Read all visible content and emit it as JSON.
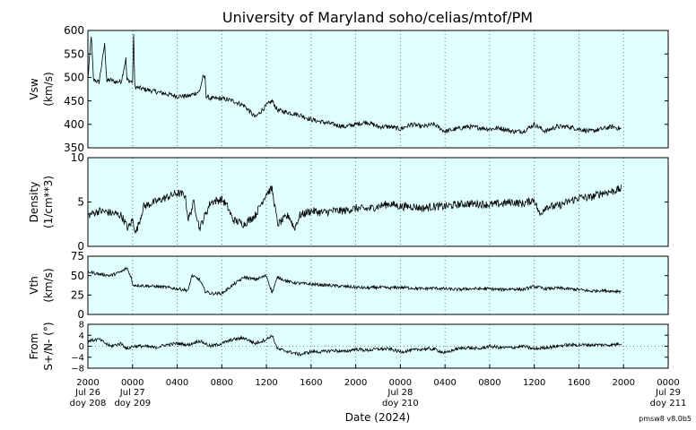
{
  "chart_data": {
    "type": "line",
    "title": "University of Maryland  soho/celias/mtof/PM",
    "xlabel": "Date (2024)",
    "credit": "pmsw8 v8.0b5",
    "x_range_hours": [
      0,
      52
    ],
    "x_ticks": [
      {
        "t": 0,
        "label": "2000",
        "sub1": "Jul 26",
        "sub2": "doy 208"
      },
      {
        "t": 4,
        "label": "0000",
        "sub1": "Jul 27",
        "sub2": "doy 209"
      },
      {
        "t": 8,
        "label": "0400",
        "sub1": "",
        "sub2": ""
      },
      {
        "t": 12,
        "label": "0800",
        "sub1": "",
        "sub2": ""
      },
      {
        "t": 16,
        "label": "1200",
        "sub1": "",
        "sub2": ""
      },
      {
        "t": 20,
        "label": "1600",
        "sub1": "",
        "sub2": ""
      },
      {
        "t": 24,
        "label": "2000",
        "sub1": "",
        "sub2": ""
      },
      {
        "t": 28,
        "label": "0000",
        "sub1": "Jul 28",
        "sub2": "doy 210"
      },
      {
        "t": 32,
        "label": "0400",
        "sub1": "",
        "sub2": ""
      },
      {
        "t": 36,
        "label": "0800",
        "sub1": "",
        "sub2": ""
      },
      {
        "t": 40,
        "label": "1200",
        "sub1": "",
        "sub2": ""
      },
      {
        "t": 44,
        "label": "1600",
        "sub1": "",
        "sub2": ""
      },
      {
        "t": 48,
        "label": "2000",
        "sub1": "",
        "sub2": ""
      },
      {
        "t": 52,
        "label": "0000",
        "sub1": "Jul 29",
        "sub2": "doy 211"
      }
    ],
    "panels": [
      {
        "ylabel1": "Vsw",
        "ylabel2": "(km/s)",
        "ylim": [
          350,
          600
        ],
        "yticks": [
          350,
          400,
          450,
          500,
          550,
          600
        ],
        "noise": 10,
        "zero_line": false,
        "points": [
          [
            0,
            495
          ],
          [
            0.3,
            590
          ],
          [
            0.5,
            495
          ],
          [
            1,
            490
          ],
          [
            1.5,
            570
          ],
          [
            1.7,
            492
          ],
          [
            2,
            495
          ],
          [
            2.5,
            490
          ],
          [
            3,
            492
          ],
          [
            3.4,
            540
          ],
          [
            3.5,
            495
          ],
          [
            4,
            490
          ],
          [
            4.1,
            595
          ],
          [
            4.2,
            480
          ],
          [
            5,
            475
          ],
          [
            6,
            470
          ],
          [
            7,
            465
          ],
          [
            8,
            460
          ],
          [
            9,
            460
          ],
          [
            10,
            470
          ],
          [
            10.3,
            500
          ],
          [
            10.5,
            500
          ],
          [
            10.6,
            460
          ],
          [
            11,
            455
          ],
          [
            12,
            455
          ],
          [
            13,
            450
          ],
          [
            14,
            440
          ],
          [
            15,
            415
          ],
          [
            16,
            440
          ],
          [
            16.5,
            450
          ],
          [
            17,
            430
          ],
          [
            18,
            425
          ],
          [
            19,
            420
          ],
          [
            20,
            410
          ],
          [
            21,
            405
          ],
          [
            22,
            400
          ],
          [
            23,
            395
          ],
          [
            24,
            400
          ],
          [
            25,
            405
          ],
          [
            26,
            395
          ],
          [
            27,
            395
          ],
          [
            28,
            390
          ],
          [
            29,
            400
          ],
          [
            30,
            395
          ],
          [
            31,
            400
          ],
          [
            32,
            385
          ],
          [
            33,
            390
          ],
          [
            34,
            395
          ],
          [
            35,
            393
          ],
          [
            36,
            390
          ],
          [
            37,
            392
          ],
          [
            38,
            385
          ],
          [
            39,
            385
          ],
          [
            40,
            400
          ],
          [
            41,
            385
          ],
          [
            42,
            395
          ],
          [
            43,
            395
          ],
          [
            44,
            390
          ],
          [
            45,
            385
          ],
          [
            46,
            390
          ],
          [
            47,
            395
          ],
          [
            47.8,
            390
          ]
        ]
      },
      {
        "ylabel1": "Density",
        "ylabel2": "(1/cm**3)",
        "ylim": [
          0,
          10
        ],
        "yticks": [
          0,
          5,
          10
        ],
        "noise": 0.9,
        "zero_line": false,
        "points": [
          [
            0,
            3.5
          ],
          [
            1,
            4
          ],
          [
            2,
            3.8
          ],
          [
            3,
            3.5
          ],
          [
            3.6,
            2
          ],
          [
            4,
            3
          ],
          [
            4.3,
            1.5
          ],
          [
            5,
            4.5
          ],
          [
            6,
            5
          ],
          [
            7,
            5.5
          ],
          [
            8,
            6
          ],
          [
            8.7,
            5.8
          ],
          [
            9,
            3
          ],
          [
            9.5,
            5
          ],
          [
            10,
            2
          ],
          [
            11,
            5
          ],
          [
            12,
            5.3
          ],
          [
            12.5,
            4.5
          ],
          [
            13,
            3
          ],
          [
            14,
            2.5
          ],
          [
            15,
            3.5
          ],
          [
            16,
            6
          ],
          [
            16.5,
            6.5
          ],
          [
            17,
            2.5
          ],
          [
            18,
            3.5
          ],
          [
            18.5,
            2
          ],
          [
            19,
            3.5
          ],
          [
            20,
            4
          ],
          [
            21,
            3.8
          ],
          [
            22,
            4
          ],
          [
            23,
            4
          ],
          [
            24,
            4.3
          ],
          [
            25,
            4.2
          ],
          [
            26,
            4.5
          ],
          [
            27,
            4.8
          ],
          [
            28,
            4.5
          ],
          [
            29,
            4.5
          ],
          [
            30,
            4.3
          ],
          [
            31,
            4.5
          ],
          [
            32,
            4.5
          ],
          [
            33,
            4.7
          ],
          [
            34,
            4.8
          ],
          [
            35,
            4.8
          ],
          [
            36,
            4.7
          ],
          [
            37,
            4.8
          ],
          [
            38,
            5
          ],
          [
            39,
            4.8
          ],
          [
            40,
            5.3
          ],
          [
            40.5,
            3.5
          ],
          [
            41,
            4.5
          ],
          [
            42,
            4.5
          ],
          [
            43,
            5
          ],
          [
            44,
            5.5
          ],
          [
            45,
            5.5
          ],
          [
            46,
            6
          ],
          [
            47,
            6.2
          ],
          [
            47.8,
            6.5
          ]
        ]
      },
      {
        "ylabel1": "Vth",
        "ylabel2": "(km/s)",
        "ylim": [
          0,
          75
        ],
        "yticks": [
          0,
          25,
          50,
          75
        ],
        "noise": 4,
        "zero_line": false,
        "points": [
          [
            0,
            55
          ],
          [
            1,
            52
          ],
          [
            2,
            50
          ],
          [
            3,
            55
          ],
          [
            3.5,
            60
          ],
          [
            3.9,
            47
          ],
          [
            4,
            38
          ],
          [
            5,
            37
          ],
          [
            6,
            36
          ],
          [
            7,
            35
          ],
          [
            8,
            33
          ],
          [
            9,
            31
          ],
          [
            9.3,
            50
          ],
          [
            10,
            45
          ],
          [
            10.5,
            30
          ],
          [
            11,
            27
          ],
          [
            12,
            27
          ],
          [
            13,
            38
          ],
          [
            14,
            48
          ],
          [
            15,
            45
          ],
          [
            16,
            50
          ],
          [
            16.5,
            28
          ],
          [
            17,
            48
          ],
          [
            18,
            42
          ],
          [
            19,
            40
          ],
          [
            20,
            39
          ],
          [
            21,
            38
          ],
          [
            22,
            37
          ],
          [
            23,
            36
          ],
          [
            24,
            35
          ],
          [
            25,
            34
          ],
          [
            26,
            35
          ],
          [
            27,
            34
          ],
          [
            28,
            35
          ],
          [
            29,
            34
          ],
          [
            30,
            33
          ],
          [
            31,
            34
          ],
          [
            32,
            33
          ],
          [
            33,
            32
          ],
          [
            34,
            33
          ],
          [
            35,
            33
          ],
          [
            36,
            33
          ],
          [
            37,
            32
          ],
          [
            38,
            33
          ],
          [
            39,
            32
          ],
          [
            40,
            36
          ],
          [
            41,
            33
          ],
          [
            42,
            34
          ],
          [
            43,
            33
          ],
          [
            44,
            32
          ],
          [
            45,
            30
          ],
          [
            46,
            31
          ],
          [
            47,
            30
          ],
          [
            47.8,
            30
          ]
        ]
      },
      {
        "ylabel1": "From",
        "ylabel2": "S+/N- (°)",
        "ylim": [
          -8,
          8
        ],
        "yticks": [
          -8,
          -4,
          0,
          4,
          8
        ],
        "ytick_labels": [
          "−8",
          "−4",
          "0",
          "4",
          "8"
        ],
        "noise": 1.2,
        "zero_line": true,
        "points": [
          [
            0,
            2
          ],
          [
            1,
            2.5
          ],
          [
            2,
            0
          ],
          [
            3,
            1
          ],
          [
            3.5,
            -1
          ],
          [
            4,
            0
          ],
          [
            5,
            0
          ],
          [
            6,
            -0.5
          ],
          [
            7,
            0.5
          ],
          [
            8,
            1
          ],
          [
            9,
            0.5
          ],
          [
            10,
            2
          ],
          [
            11,
            0
          ],
          [
            12,
            1
          ],
          [
            13,
            2.5
          ],
          [
            14,
            3
          ],
          [
            15,
            1
          ],
          [
            16,
            2.5
          ],
          [
            16.5,
            4
          ],
          [
            17,
            -1
          ],
          [
            18,
            -2
          ],
          [
            19,
            -3
          ],
          [
            20,
            -2
          ],
          [
            21,
            -2
          ],
          [
            22,
            -1.5
          ],
          [
            23,
            -2
          ],
          [
            24,
            -1
          ],
          [
            25,
            -1.5
          ],
          [
            26,
            -1
          ],
          [
            27,
            -1
          ],
          [
            28,
            -2
          ],
          [
            29,
            -1.5
          ],
          [
            30,
            -1
          ],
          [
            31,
            -1
          ],
          [
            32,
            -2.5
          ],
          [
            33,
            -1
          ],
          [
            34,
            -0.5
          ],
          [
            35,
            -1
          ],
          [
            36,
            0
          ],
          [
            37,
            -0.5
          ],
          [
            38,
            -0.5
          ],
          [
            39,
            0
          ],
          [
            40,
            -1
          ],
          [
            41,
            -0.5
          ],
          [
            42,
            0
          ],
          [
            43,
            0.5
          ],
          [
            44,
            0.5
          ],
          [
            45,
            0.5
          ],
          [
            46,
            0.5
          ],
          [
            47,
            0.5
          ],
          [
            47.8,
            1
          ]
        ]
      }
    ]
  }
}
